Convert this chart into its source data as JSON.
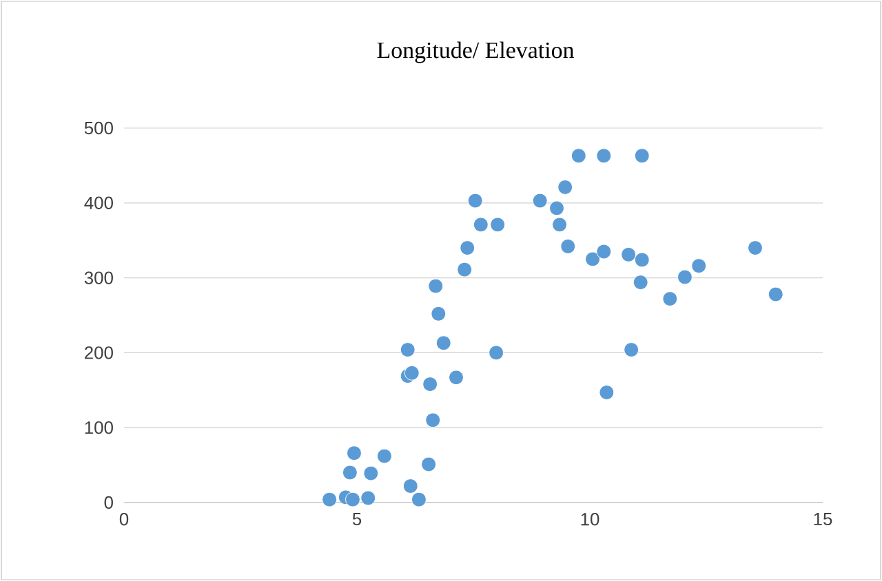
{
  "chart_data": {
    "type": "scatter",
    "title": "Longitude/ Elevation",
    "x": [
      4.41,
      4.76,
      4.91,
      4.85,
      4.94,
      5.24,
      5.3,
      5.59,
      6.15,
      6.33,
      6.54,
      6.63,
      6.09,
      6.09,
      6.18,
      6.57,
      6.69,
      6.75,
      6.86,
      7.13,
      7.31,
      7.37,
      7.54,
      7.66,
      8.02,
      7.99,
      8.93,
      9.29,
      9.35,
      9.47,
      9.53,
      9.76,
      10.06,
      10.3,
      10.3,
      10.36,
      10.83,
      11.12,
      11.09,
      10.89,
      11.12,
      11.72,
      12.04,
      12.34,
      13.55,
      13.99
    ],
    "values": [
      4,
      7,
      4,
      40,
      66,
      6,
      39,
      62,
      22,
      4,
      51,
      110,
      204,
      169,
      173,
      158,
      289,
      252,
      213,
      167,
      311,
      340,
      403,
      371,
      371,
      200,
      403,
      393,
      371,
      421,
      342,
      463,
      325,
      463,
      335,
      147,
      331,
      324,
      294,
      204,
      463,
      272,
      301,
      316,
      340,
      278
    ],
    "color": "#5b9bd5",
    "xlim": [
      0,
      15
    ],
    "xticks": [
      0,
      5,
      10,
      15
    ],
    "ylim": [
      0,
      500
    ],
    "yticks": [
      0,
      100,
      200,
      300,
      400,
      500
    ],
    "grid": "y"
  }
}
